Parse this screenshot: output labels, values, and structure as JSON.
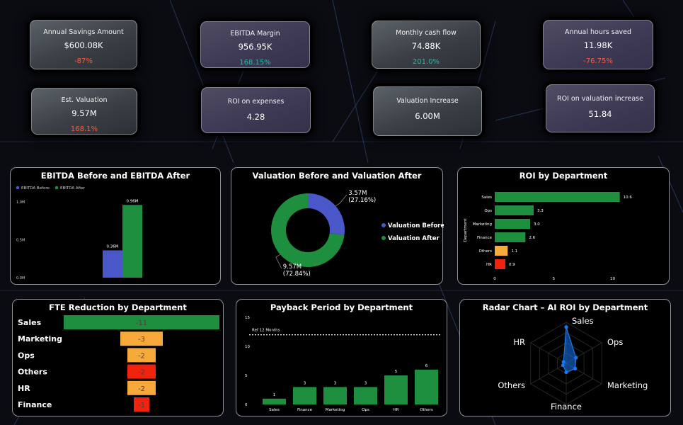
{
  "colors": {
    "green": "#1e8f3e",
    "blue": "#4a57c9",
    "orange": "#f7a93a",
    "red": "#f0230f",
    "teal": "#2fb5a0",
    "neg": "#ff5a3c",
    "radar": "#1877f2"
  },
  "kpis": [
    {
      "label": "Annual Savings Amount",
      "value": "$600.08K",
      "change": "-87%",
      "change_color": "#ff5a3c",
      "style": "gray"
    },
    {
      "label": "EBITDA Margin",
      "value": "956.95K",
      "change": "168.15%",
      "change_color": "#2fb5a0",
      "style": "purple"
    },
    {
      "label": "Monthly cash flow",
      "value": "74.88K",
      "change": "201.0%",
      "change_color": "#2fb5a0",
      "style": "gray"
    },
    {
      "label": "Annual hours saved",
      "value": "11.98K",
      "change": "-76.75%",
      "change_color": "#ff5a3c",
      "style": "purple"
    },
    {
      "label": "Est. Valuation",
      "value": "9.57M",
      "change": "168.1%",
      "change_color": "#ff5a3c",
      "style": "gray"
    },
    {
      "label": "ROI on expenses",
      "value": "4.28",
      "change": "",
      "style": "purple"
    },
    {
      "label": "Valuation Increase",
      "value": "6.00M",
      "change": "",
      "style": "gray"
    },
    {
      "label": "ROI on valuation increase",
      "value": "51.84",
      "change": "",
      "style": "purple"
    }
  ],
  "chart_data": [
    {
      "id": "ebitda",
      "type": "bar",
      "title": "EBITDA Before and EBITDA After",
      "legend": [
        "EBITDA Before",
        "EBITDA After"
      ],
      "legend_position": "top-left",
      "series": [
        {
          "name": "EBITDA Before",
          "values": [
            0.36
          ],
          "label": "0.36M",
          "color": "#4a57c9"
        },
        {
          "name": "EBITDA After",
          "values": [
            0.96
          ],
          "label": "0.96M",
          "color": "#1e8f3e"
        }
      ],
      "ylim": [
        0,
        1.0
      ],
      "yticks": [
        {
          "v": 1.0,
          "t": "1.0M"
        },
        {
          "v": 0.5,
          "t": "0.5M"
        },
        {
          "v": 0.0,
          "t": "0.0M"
        }
      ],
      "grid": false
    },
    {
      "id": "valuation",
      "type": "pie",
      "donut": true,
      "title": "Valuation Before and Valuation After",
      "slices": [
        {
          "name": "Valuation  Before",
          "value": 27.16,
          "label1": "3.57M",
          "label2": "(27.16%)",
          "color": "#4a57c9"
        },
        {
          "name": "Valuation  After",
          "value": 72.84,
          "label1": "9.57M",
          "label2": "(72.84%)",
          "color": "#1e8f3e"
        }
      ],
      "legend_position": "right"
    },
    {
      "id": "roi",
      "type": "bar",
      "orientation": "horizontal",
      "title": "ROI by Department",
      "ylabel": "Department",
      "categories": [
        "Sales",
        "Ops",
        "Marketing",
        "Finance",
        "Others",
        "HR"
      ],
      "values": [
        10.6,
        3.3,
        3.0,
        2.6,
        1.1,
        0.9
      ],
      "labels": [
        "10.6",
        "3.3",
        "3.0",
        "2.6",
        "1.1",
        "0.9"
      ],
      "colors": [
        "#1e8f3e",
        "#1e8f3e",
        "#1e8f3e",
        "#1e8f3e",
        "#f7a93a",
        "#f0230f"
      ],
      "xlim": [
        0,
        12
      ],
      "xticks": [
        0,
        5,
        10
      ]
    },
    {
      "id": "fte",
      "type": "bar",
      "orientation": "horizontal-funnel",
      "title": "FTE Reduction by Department",
      "categories": [
        "Sales",
        "Marketing",
        "Ops",
        "Others",
        "HR",
        "Finance"
      ],
      "values": [
        -11,
        -3,
        -2,
        -2,
        -2,
        -1
      ],
      "labels": [
        "-11",
        "-3",
        "-2",
        "-2",
        "-2",
        "-1"
      ],
      "colors": [
        "#1e8f3e",
        "#f7a93a",
        "#f7a93a",
        "#f0230f",
        "#f7a93a",
        "#f0230f"
      ]
    },
    {
      "id": "payback",
      "type": "bar",
      "title": "Payback Period by Department",
      "categories": [
        "Sales",
        "Finance",
        "Marketing",
        "Ops",
        "HR",
        "Others"
      ],
      "values": [
        1,
        3,
        3,
        3,
        5,
        6
      ],
      "labels": [
        "1",
        "3",
        "3",
        "3",
        "5",
        "6"
      ],
      "color": "#1e8f3e",
      "ylim": [
        0,
        15
      ],
      "yticks": [
        0,
        5,
        10,
        15
      ],
      "reference": {
        "value": 12,
        "label": "Ref 12 Months"
      }
    },
    {
      "id": "radar",
      "type": "radar",
      "title": "Radar Chart – AI ROI by Department",
      "categories": [
        "Sales",
        "Ops",
        "Marketing",
        "Finance",
        "Others",
        "HR"
      ],
      "values": [
        10.6,
        3.3,
        3.0,
        2.6,
        1.1,
        0.9
      ],
      "rmax": 12,
      "color": "#1877f2"
    }
  ]
}
